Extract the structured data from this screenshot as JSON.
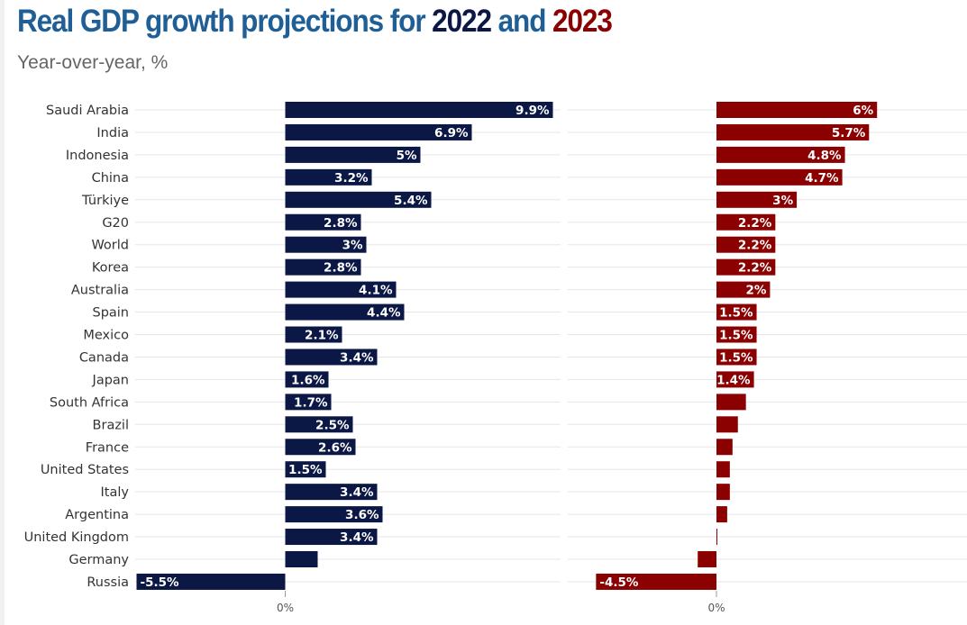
{
  "header": {
    "title_part1": "Real GDP growth projections for ",
    "year1": "2022",
    "title_and": " and ",
    "year2": "2023",
    "subtitle": "Year-over-year, %"
  },
  "colors": {
    "title_blue": "#1f5f96",
    "series_2022": "#0b1744",
    "series_2023": "#8b0000",
    "gridline": "#e6e6e6"
  },
  "chart_data": {
    "type": "bar",
    "orientation": "horizontal",
    "categories": [
      "Saudi Arabia",
      "India",
      "Indonesia",
      "China",
      "Türkiye",
      "G20",
      "World",
      "Korea",
      "Australia",
      "Spain",
      "Mexico",
      "Canada",
      "Japan",
      "South Africa",
      "Brazil",
      "France",
      "United States",
      "Italy",
      "Argentina",
      "United Kingdom",
      "Germany",
      "Russia"
    ],
    "series": [
      {
        "name": "2022",
        "values": [
          9.9,
          6.9,
          5,
          3.2,
          5.4,
          2.8,
          3,
          2.8,
          4.1,
          4.4,
          2.1,
          3.4,
          1.6,
          1.7,
          2.5,
          2.6,
          1.5,
          3.4,
          3.6,
          3.4,
          1.2,
          -5.5
        ],
        "labels": [
          "9.9%",
          "6.9%",
          "5%",
          "3.2%",
          "5.4%",
          "2.8%",
          "3%",
          "2.8%",
          "4.1%",
          "4.4%",
          "2.1%",
          "3.4%",
          "1.6%",
          "1.7%",
          "2.5%",
          "2.6%",
          "1.5%",
          "3.4%",
          "3.6%",
          "3.4%",
          "",
          "-5.5%"
        ]
      },
      {
        "name": "2023",
        "values": [
          6,
          5.7,
          4.8,
          4.7,
          3,
          2.2,
          2.2,
          2.2,
          2,
          1.5,
          1.5,
          1.5,
          1.4,
          1.1,
          0.8,
          0.6,
          0.5,
          0.5,
          0.4,
          0,
          -0.7,
          -4.5
        ],
        "labels": [
          "6%",
          "5.7%",
          "4.8%",
          "4.7%",
          "3%",
          "2.2%",
          "2.2%",
          "2.2%",
          "2%",
          "1.5%",
          "1.5%",
          "1.5%",
          "1.4%",
          "",
          "",
          "",
          "",
          "",
          "",
          "",
          "",
          "-4.5%"
        ]
      }
    ],
    "zero_tick_label": "0%",
    "grid": true
  }
}
